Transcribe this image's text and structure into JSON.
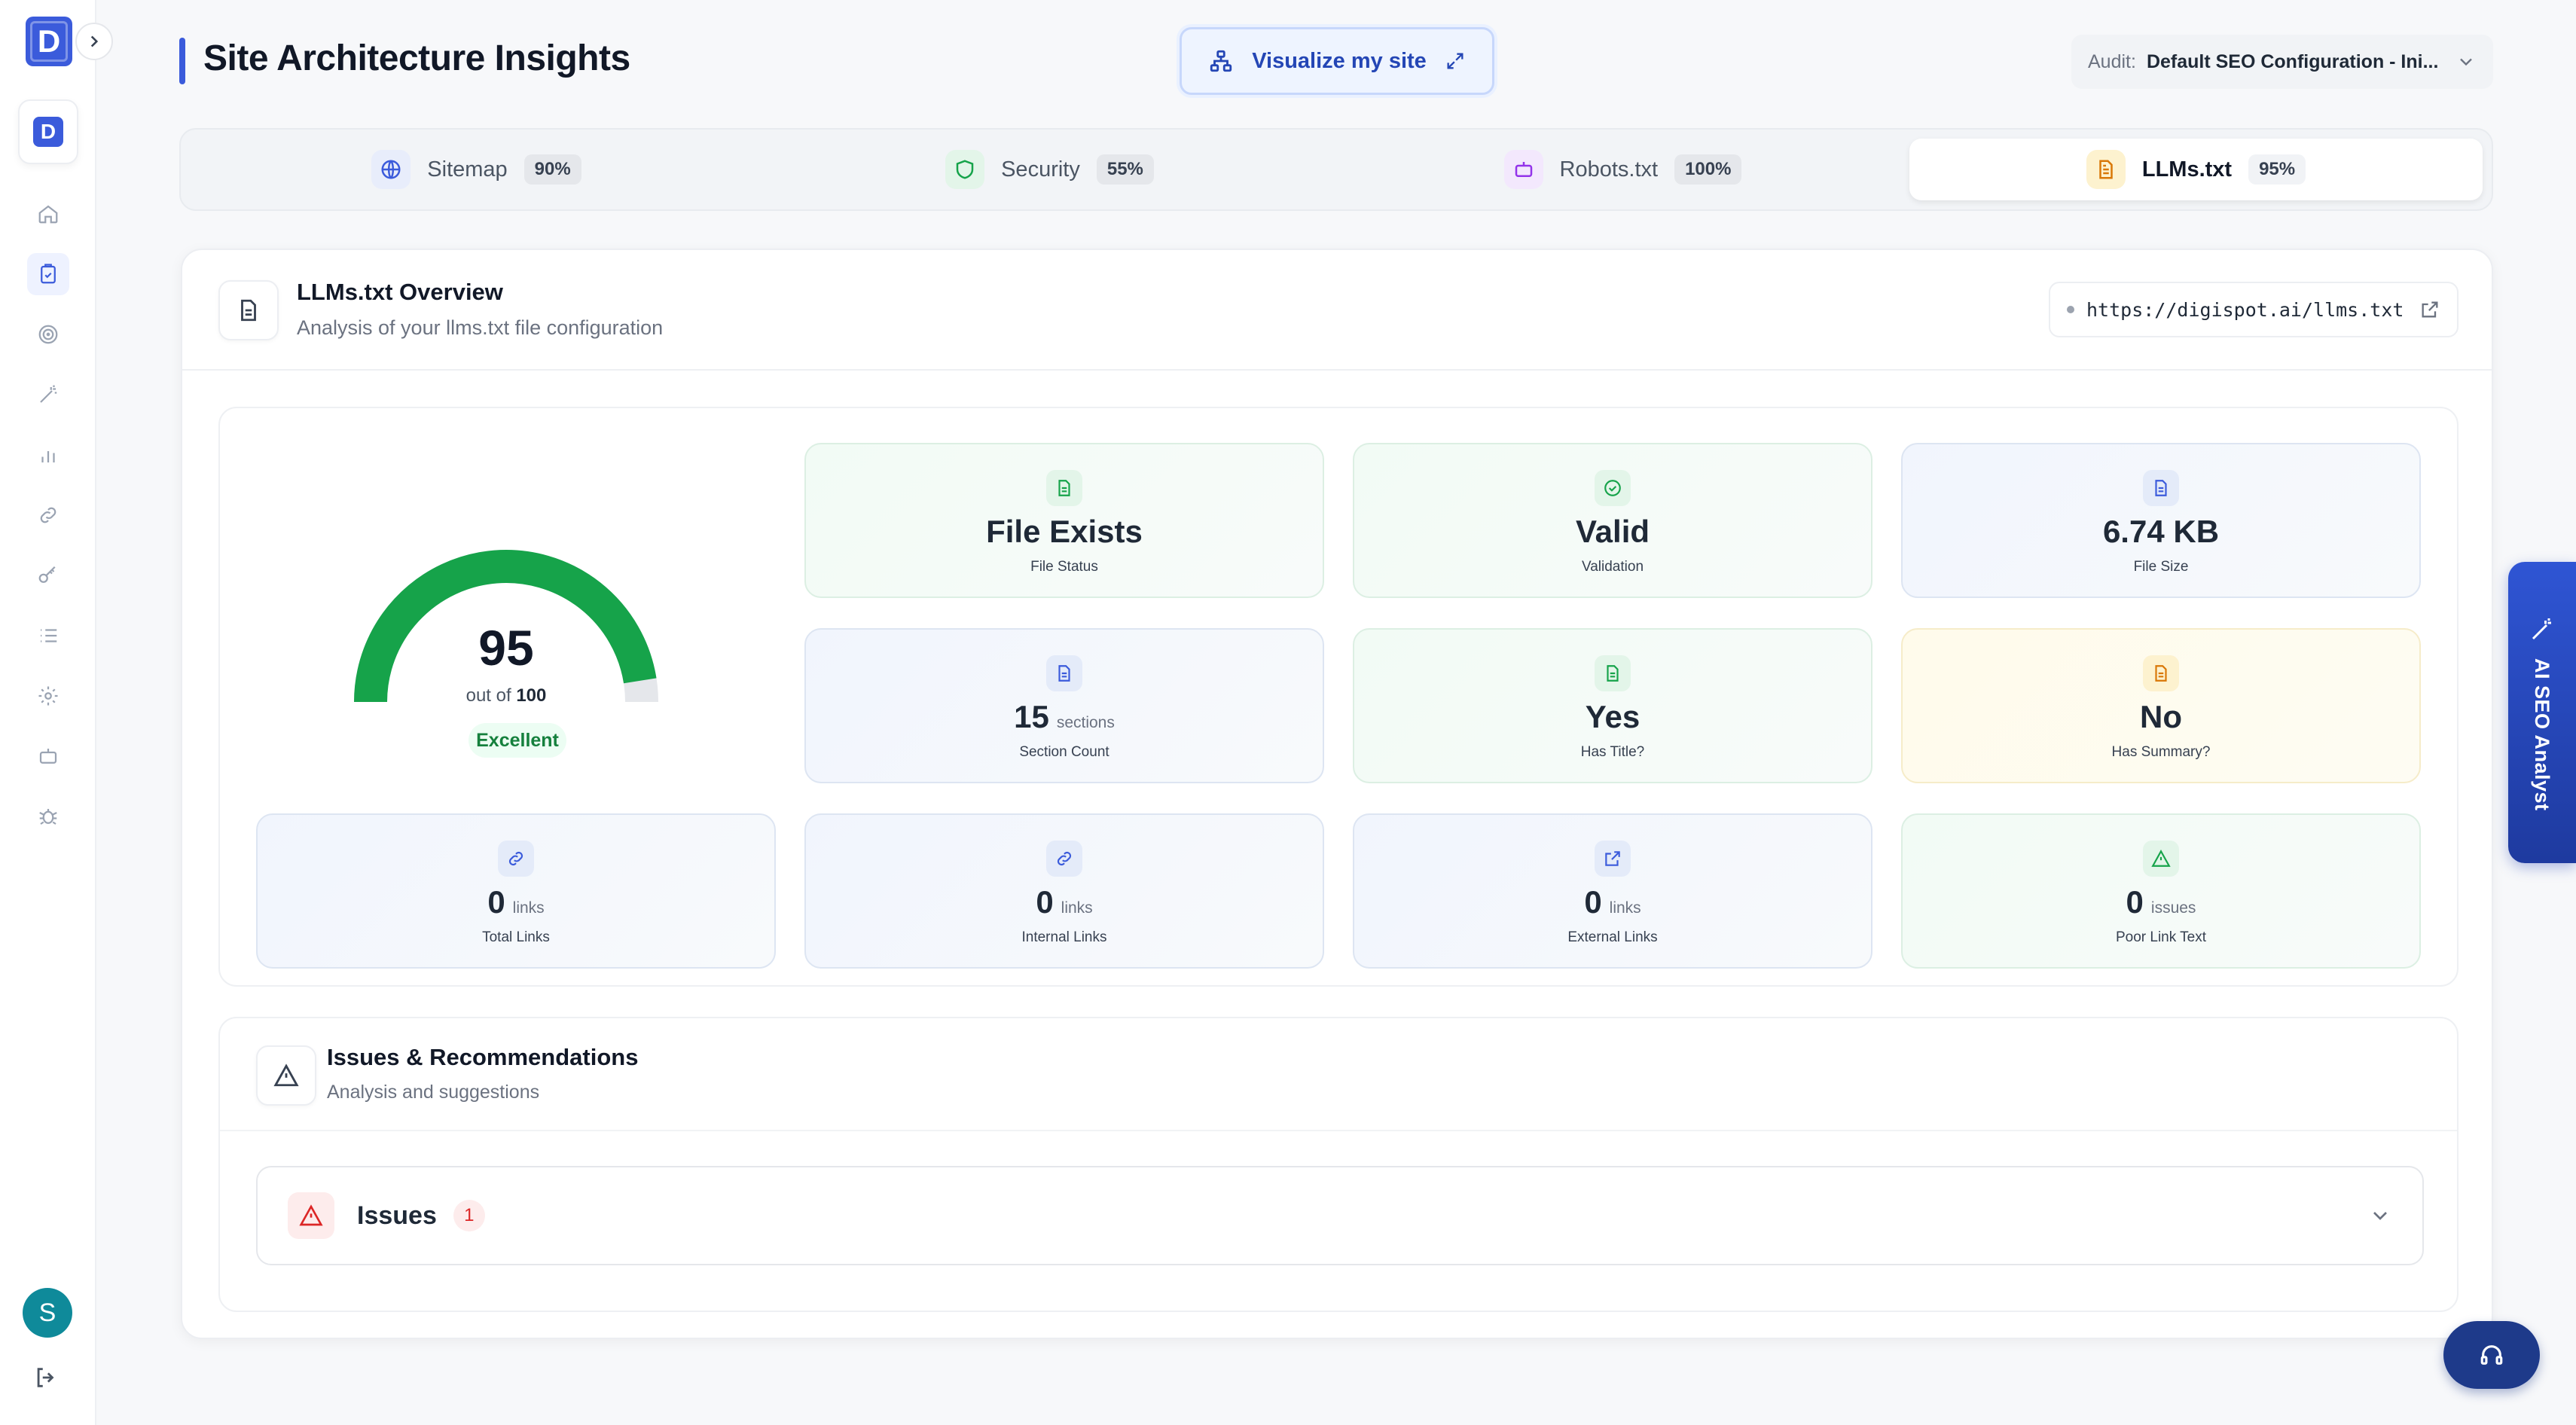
{
  "header": {
    "title": "Site Architecture Insights",
    "visualize_label": "Visualize my site",
    "audit_label": "Audit:",
    "audit_value": "Default SEO Configuration - Ini..."
  },
  "sidebar": {
    "logo_letter": "D",
    "avatar_letter": "S",
    "items": [
      "home-icon",
      "clipboard-check-icon",
      "target-icon",
      "magic-wand-icon",
      "bar-chart-icon",
      "link-icon",
      "key-icon",
      "list-icon",
      "gear-icon",
      "robot-icon",
      "bug-icon"
    ],
    "active_item": "clipboard-check-icon"
  },
  "tabs": [
    {
      "label": "Sitemap",
      "score": "90%",
      "icon": "sitemap-icon",
      "color": "#3b5bdb"
    },
    {
      "label": "Security",
      "score": "55%",
      "icon": "shield-icon",
      "color": "#16a34a"
    },
    {
      "label": "Robots.txt",
      "score": "100%",
      "icon": "robot-icon",
      "color": "#9333ea"
    },
    {
      "label": "LLMs.txt",
      "score": "95%",
      "icon": "document-icon",
      "color": "#d97706",
      "active": true
    }
  ],
  "overview": {
    "title": "LLMs.txt Overview",
    "subtitle": "Analysis of your llms.txt file configuration",
    "url": "https://digispot.ai/llms.txt"
  },
  "gauge": {
    "score": "95",
    "out_of_prefix": "out of",
    "out_of_value": "100",
    "grade": "Excellent",
    "fraction": 0.95,
    "fill_color": "#16a34a",
    "track_color": "#e5e7eb"
  },
  "stats": {
    "file_status": {
      "value": "File Exists",
      "label": "File Status"
    },
    "validation": {
      "value": "Valid",
      "label": "Validation"
    },
    "file_size": {
      "value": "6.74 KB",
      "label": "File Size"
    },
    "section_count": {
      "value": "15",
      "unit": "sections",
      "label": "Section Count"
    },
    "has_title": {
      "value": "Yes",
      "label": "Has Title?"
    },
    "has_summary": {
      "value": "No",
      "label": "Has Summary?"
    },
    "total_links": {
      "value": "0",
      "unit": "links",
      "label": "Total Links"
    },
    "internal_links": {
      "value": "0",
      "unit": "links",
      "label": "Internal Links"
    },
    "external_links": {
      "value": "0",
      "unit": "links",
      "label": "External Links"
    },
    "poor_link_text": {
      "value": "0",
      "unit": "issues",
      "label": "Poor Link Text"
    }
  },
  "issues_section": {
    "title": "Issues & Recommendations",
    "subtitle": "Analysis and suggestions",
    "issues_label": "Issues",
    "issues_count": "1"
  },
  "floating": {
    "ai_label": "AI SEO Analyst"
  }
}
